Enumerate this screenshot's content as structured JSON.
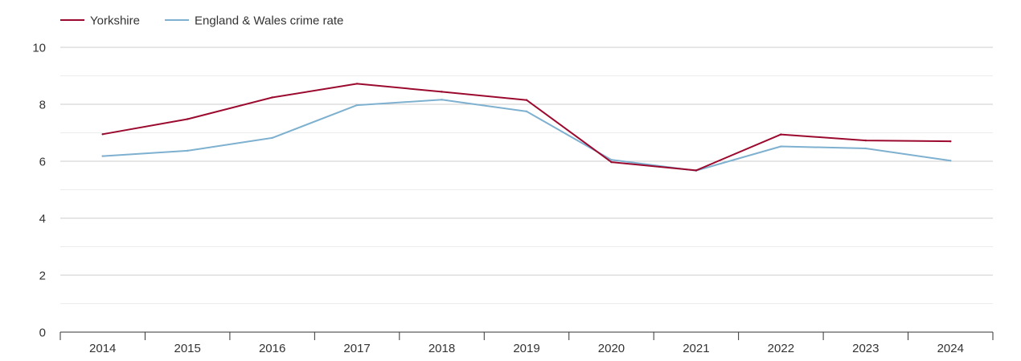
{
  "chart_data": {
    "type": "line",
    "title": "",
    "xlabel": "",
    "ylabel": "",
    "categories": [
      "2014",
      "2015",
      "2016",
      "2017",
      "2018",
      "2019",
      "2020",
      "2021",
      "2022",
      "2023",
      "2024"
    ],
    "yticks": [
      "0",
      "2",
      "4",
      "6",
      "8",
      "10"
    ],
    "ylim": [
      0,
      10
    ],
    "grid": true,
    "legend_position": "top-left",
    "series": [
      {
        "name": "Yorkshire",
        "color": "#9b0a2e",
        "values": [
          6.95,
          7.48,
          8.24,
          8.72,
          8.44,
          8.15,
          5.97,
          5.68,
          6.94,
          6.73,
          6.7
        ]
      },
      {
        "name": "England & Wales crime rate",
        "color": "#7eb0d0",
        "values": [
          6.18,
          6.37,
          6.82,
          7.97,
          8.16,
          7.75,
          6.05,
          5.67,
          6.52,
          6.45,
          6.02
        ]
      }
    ]
  }
}
